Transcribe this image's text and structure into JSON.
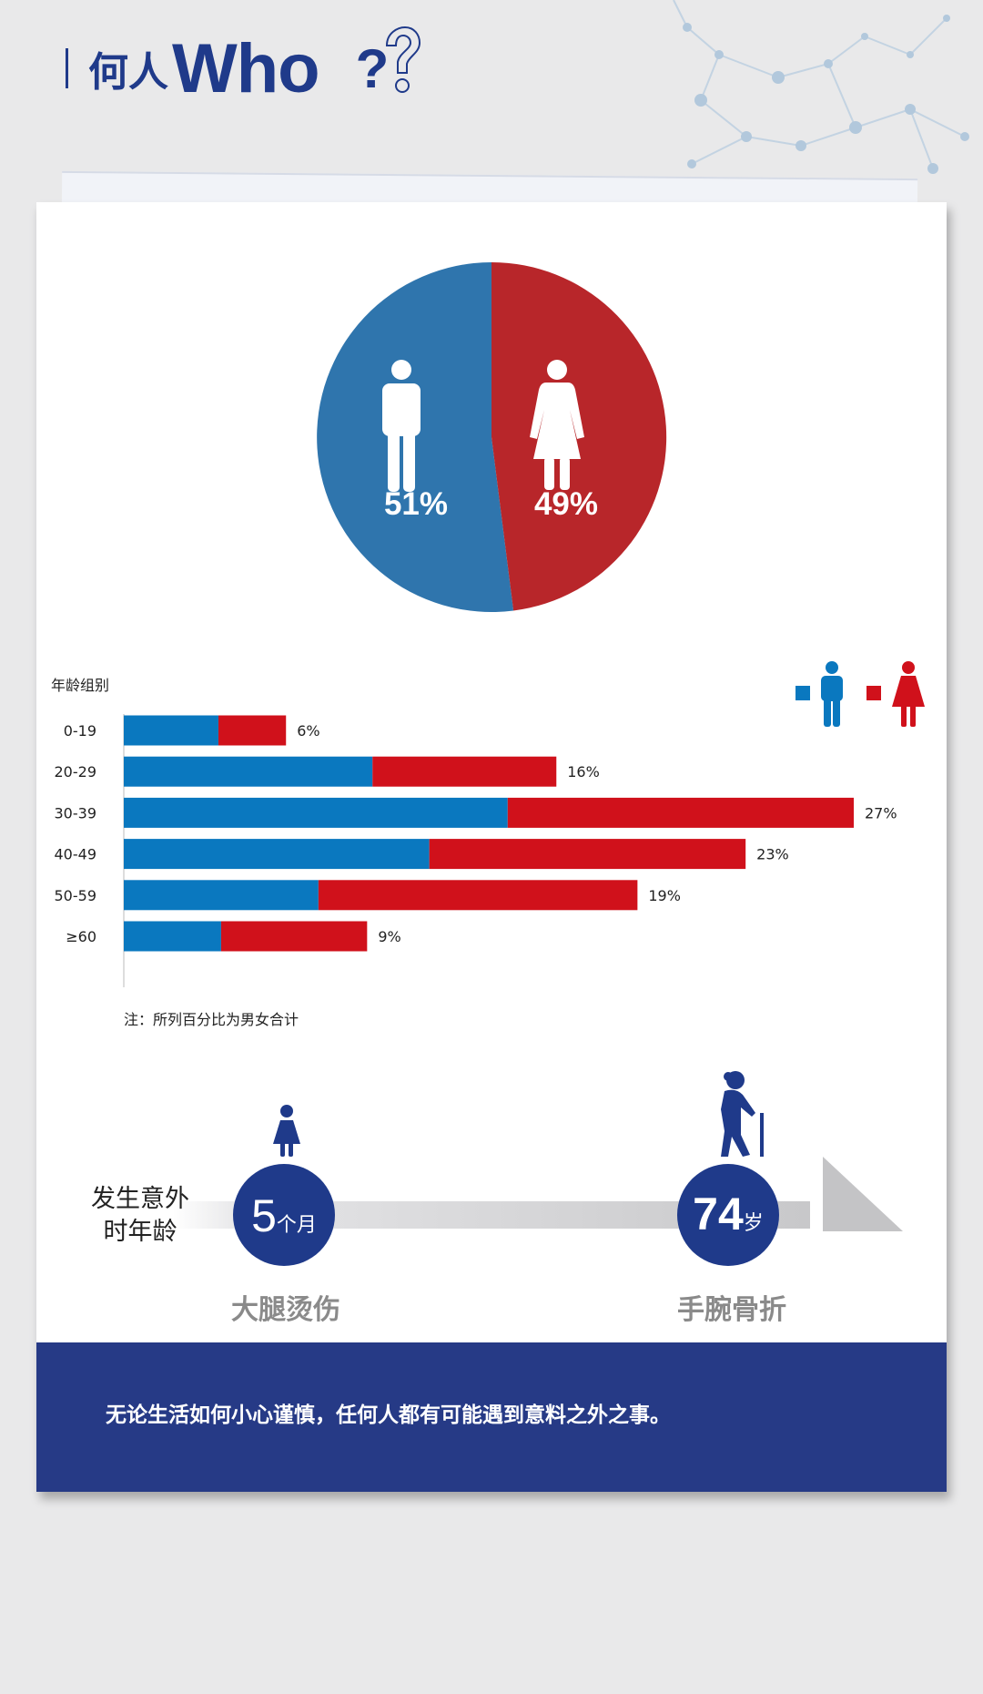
{
  "header": {
    "title_zh": "何人",
    "title_en": "Who",
    "q_mark": "?"
  },
  "colors": {
    "male": "#2f75ad",
    "female": "#b8262a",
    "bar_male": "#0a78bf",
    "bar_female": "#d0111b",
    "navy": "#1f3a8a",
    "footer": "#263a86"
  },
  "pie": {
    "male_label": "51%",
    "female_label": "49%",
    "male_share": 0.51,
    "female_share": 0.49
  },
  "chart_data": {
    "type": "bar",
    "orientation": "horizontal",
    "stacked": true,
    "ylabel": "年龄组别",
    "categories": [
      "0-19",
      "20-29",
      "30-39",
      "40-49",
      "50-59",
      "≥60"
    ],
    "series": [
      {
        "values": [
          3.5,
          9.2,
          14.2,
          11.3,
          7.2,
          3.6
        ]
      },
      {
        "values": [
          2.5,
          6.8,
          12.8,
          11.7,
          11.8,
          5.4
        ]
      }
    ],
    "totals": [
      6,
      16,
      27,
      23,
      19,
      9
    ],
    "total_labels": [
      "6%",
      "16%",
      "27%",
      "23%",
      "19%",
      "9%"
    ],
    "xlim": [
      0,
      27
    ],
    "legend_position": "top-right",
    "note": "注：所列百分比为男女合计"
  },
  "age_line": {
    "label_line1": "发生意外",
    "label_line2": "时年龄",
    "young_value": "5",
    "young_unit": "个月",
    "old_value": "74",
    "old_unit": "岁",
    "young_caption": "大腿烫伤",
    "old_caption": "手腕骨折"
  },
  "footer": {
    "text": "无论生活如何小心谨慎，任何人都有可能遇到意料之外之事。"
  }
}
